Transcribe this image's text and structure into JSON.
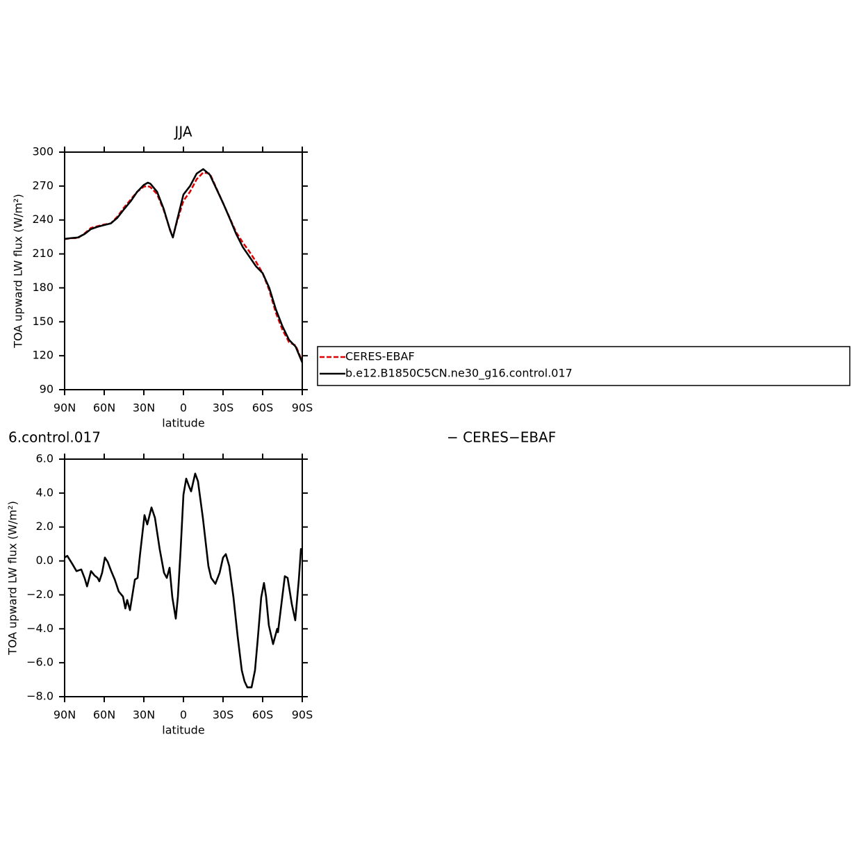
{
  "chart_data": [
    {
      "type": "line",
      "title": "JJA",
      "xlabel": "latitude",
      "ylabel": "TOA upward LW flux (W/m²)",
      "x": [
        90,
        85,
        80,
        75,
        70,
        65,
        60,
        55,
        50,
        45,
        40,
        35,
        30,
        27,
        25,
        20,
        15,
        10,
        8,
        5,
        0,
        -5,
        -10,
        -15,
        -20,
        -25,
        -30,
        -35,
        -40,
        -45,
        -50,
        -55,
        -60,
        -65,
        -70,
        -75,
        -80,
        -85,
        -90
      ],
      "series": [
        {
          "name": "CERES-EBAF",
          "color": "#e00000",
          "dashed": true,
          "values": [
            223,
            224,
            224,
            228,
            233,
            234.5,
            236,
            237,
            243,
            251,
            258,
            265,
            269.5,
            270,
            269,
            263,
            249,
            231,
            225,
            238,
            257,
            265,
            276,
            282,
            281,
            268,
            255,
            242,
            229,
            220,
            212,
            203,
            193,
            178,
            158,
            143,
            132,
            129,
            115
          ]
        },
        {
          "name": "b.e12.B1850C5CN.ne30_g16.control.017",
          "color": "#000000",
          "dashed": false,
          "values": [
            223.3,
            224,
            224.5,
            227.5,
            232,
            234,
            235.5,
            237,
            242,
            249.5,
            256.5,
            265,
            271,
            273,
            272,
            265,
            250,
            230.5,
            224.5,
            239,
            262.5,
            270,
            281,
            285,
            280,
            267.5,
            255,
            241.5,
            227.5,
            216,
            207.5,
            199,
            193,
            180,
            161,
            146,
            134,
            128,
            114
          ]
        }
      ],
      "xlim": [
        90,
        -90
      ],
      "xticks": [
        {
          "value": 90,
          "label": "90N"
        },
        {
          "value": 60,
          "label": "60N"
        },
        {
          "value": 30,
          "label": "30N"
        },
        0,
        {
          "value": -30,
          "label": "30S"
        },
        {
          "value": -60,
          "label": "60S"
        },
        {
          "value": -90,
          "label": "90S"
        }
      ],
      "ylim": [
        90,
        300
      ],
      "yticks": [
        90,
        120,
        150,
        180,
        210,
        240,
        270,
        300
      ],
      "legend": "outside-right"
    },
    {
      "type": "line",
      "title_left": "6.control.017",
      "title_right": "− CERES−EBAF",
      "xlabel": "latitude",
      "ylabel": "TOA upward LW flux (W/m²)",
      "x": [
        90,
        88,
        86,
        84,
        81,
        77.4,
        74.7,
        73,
        70,
        67.4,
        65,
        63.7,
        61.6,
        59.5,
        57.4,
        54.7,
        52,
        49,
        45.8,
        44,
        42.6,
        40.5,
        36.8,
        34.7,
        33,
        29.5,
        27.4,
        24.2,
        21.6,
        18,
        14.7,
        12.6,
        10.5,
        8.4,
        5.8,
        4.2,
        2.1,
        0,
        -2.1,
        -4.2,
        -5.8,
        -8.9,
        -11,
        -14.7,
        -18.9,
        -21,
        -24.2,
        -27.4,
        -30,
        -32.1,
        -34.7,
        -37.9,
        -41,
        -44.2,
        -46.3,
        -48.4,
        -51.6,
        -54.2,
        -56.3,
        -58.9,
        -61,
        -62.6,
        -64.7,
        -67.9,
        -71,
        -71.6,
        -74.2,
        -76.8,
        -78.9,
        -82.1,
        -84.7,
        -87.4,
        -89,
        -90
      ],
      "series": [
        {
          "color": "#000000",
          "dashed": false,
          "values": [
            0.2,
            0.3,
            0.05,
            -0.2,
            -0.6,
            -0.5,
            -1.05,
            -1.5,
            -0.6,
            -0.85,
            -1.0,
            -1.2,
            -0.7,
            0.2,
            -0.05,
            -0.6,
            -1.1,
            -1.8,
            -2.1,
            -2.8,
            -2.3,
            -2.9,
            -1.1,
            -1.0,
            0.3,
            2.7,
            2.15,
            3.15,
            2.55,
            0.7,
            -0.7,
            -1.0,
            -0.4,
            -2.15,
            -3.4,
            -2.1,
            0.7,
            3.9,
            4.85,
            4.4,
            4.1,
            5.15,
            4.7,
            2.55,
            -0.3,
            -1.0,
            -1.35,
            -0.7,
            0.2,
            0.4,
            -0.3,
            -2.15,
            -4.4,
            -6.45,
            -7.1,
            -7.45,
            -7.45,
            -6.45,
            -4.6,
            -2.15,
            -1.3,
            -2.1,
            -3.8,
            -4.9,
            -4.0,
            -4.2,
            -2.55,
            -0.9,
            -1.0,
            -2.55,
            -3.5,
            -1.1,
            0.7,
            0.7
          ]
        }
      ],
      "xlim": [
        90,
        -90
      ],
      "xticks": [
        {
          "value": 90,
          "label": "90N"
        },
        {
          "value": 60,
          "label": "60N"
        },
        {
          "value": 30,
          "label": "30N"
        },
        0,
        {
          "value": -30,
          "label": "30S"
        },
        {
          "value": -60,
          "label": "60S"
        },
        {
          "value": -90,
          "label": "90S"
        }
      ],
      "ylim": [
        -8,
        6
      ],
      "yticks": [
        {
          "value": -8,
          "label": "−8.0"
        },
        {
          "value": -6,
          "label": "−6.0"
        },
        {
          "value": -4,
          "label": "−4.0"
        },
        {
          "value": -2,
          "label": "−2.0"
        },
        {
          "value": 0,
          "label": "0.0"
        },
        {
          "value": 2,
          "label": "2.0"
        },
        {
          "value": 4,
          "label": "4.0"
        },
        {
          "value": 6,
          "label": "6.0"
        }
      ]
    }
  ]
}
